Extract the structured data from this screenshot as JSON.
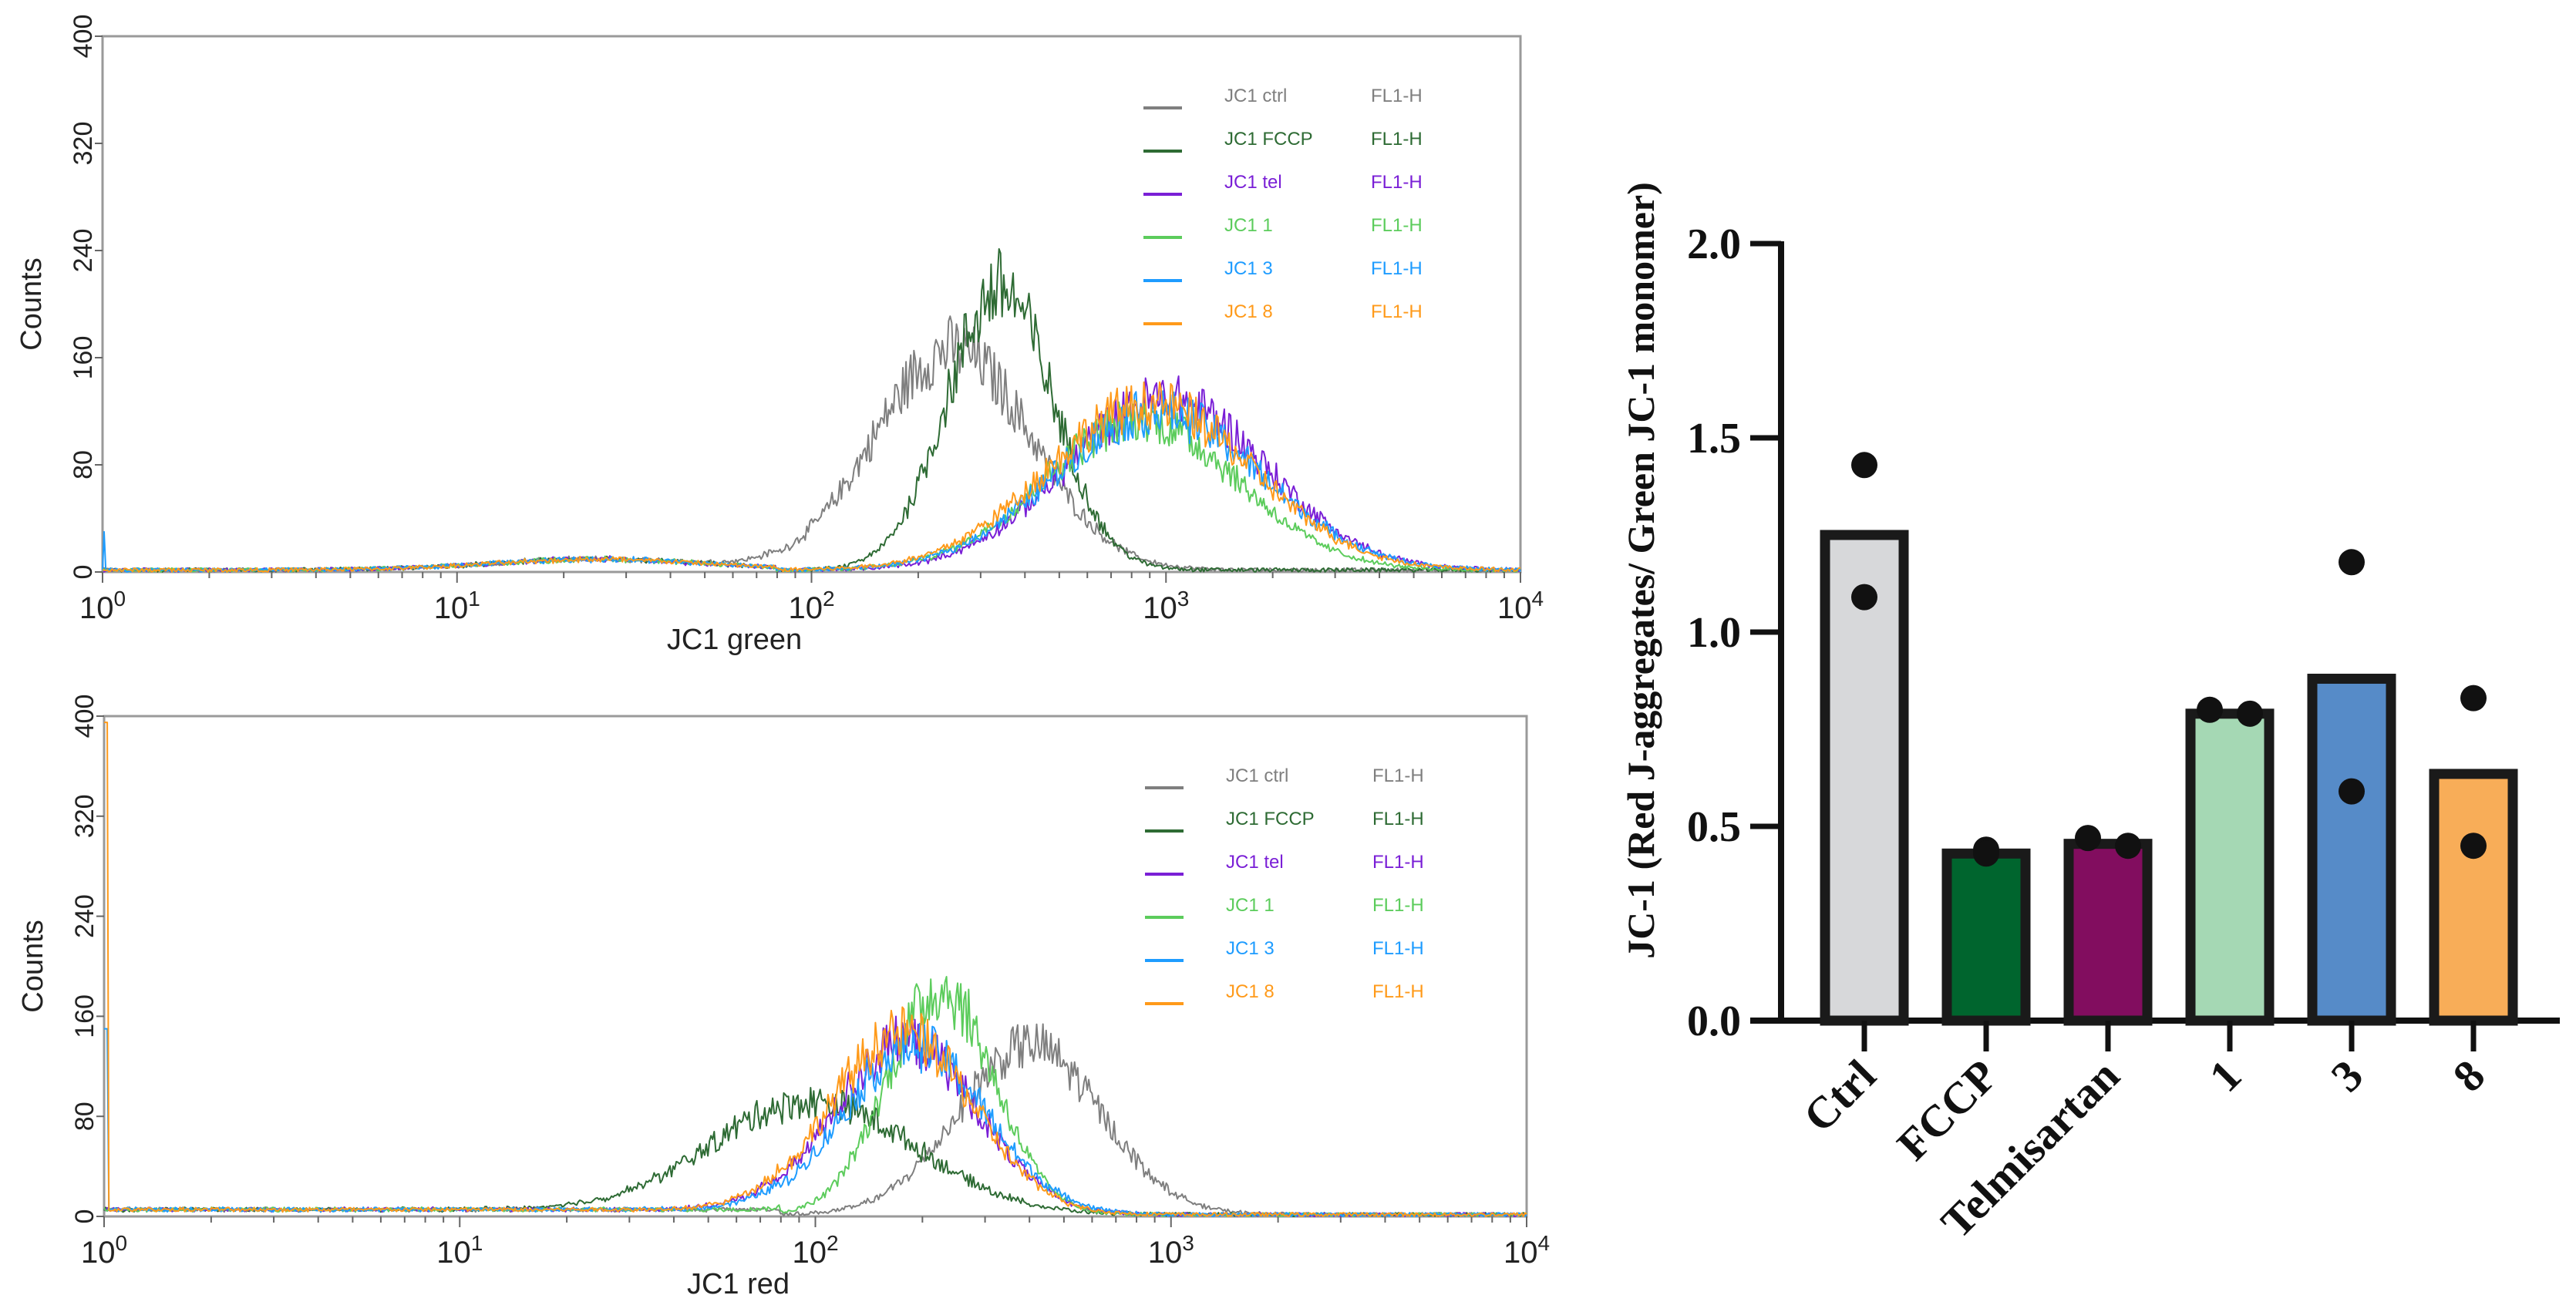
{
  "chart_data": [
    {
      "type": "line",
      "subtype": "flow-cytometry-histogram",
      "xlabel": "JC1 green",
      "ylabel": "Counts",
      "xscale": "log",
      "xlim": [
        1,
        10000
      ],
      "ylim": [
        0,
        400
      ],
      "x_ticks": [
        {
          "base": "10",
          "exp": "0"
        },
        {
          "base": "10",
          "exp": "1"
        },
        {
          "base": "10",
          "exp": "2"
        },
        {
          "base": "10",
          "exp": "3"
        },
        {
          "base": "10",
          "exp": "4"
        }
      ],
      "y_ticks": [
        "0",
        "80",
        "160",
        "240",
        "320",
        "400"
      ],
      "legend_position": "top-right",
      "series": [
        {
          "name": "JC1 ctrl",
          "channel": "FL1-H",
          "color": "#7f7f7f",
          "peak_position": 250,
          "peak_count": 165,
          "log_spread": 0.22
        },
        {
          "name": "JC1 FCCP",
          "channel": "FL1-H",
          "color": "#2e6b34",
          "peak_position": 340,
          "peak_count": 210,
          "log_spread": 0.15
        },
        {
          "name": "JC1 tel",
          "channel": "FL1-H",
          "color": "#7a1fd6",
          "peak_position": 1000,
          "peak_count": 128,
          "log_spread": 0.28
        },
        {
          "name": "JC1 1",
          "channel": "FL1-H",
          "color": "#5ccc5c",
          "peak_position": 850,
          "peak_count": 112,
          "log_spread": 0.27
        },
        {
          "name": "JC1 3",
          "channel": "FL1-H",
          "color": "#1e9cff",
          "peak_position": 950,
          "peak_count": 118,
          "log_spread": 0.29
        },
        {
          "name": "JC1 8",
          "channel": "FL1-H",
          "color": "#ff9a1a",
          "peak_position": 900,
          "peak_count": 124,
          "log_spread": 0.29
        }
      ]
    },
    {
      "type": "line",
      "subtype": "flow-cytometry-histogram",
      "xlabel": "JC1 red",
      "ylabel": "Counts",
      "xscale": "log",
      "xlim": [
        1,
        10000
      ],
      "ylim": [
        0,
        400
      ],
      "x_ticks": [
        {
          "base": "10",
          "exp": "0"
        },
        {
          "base": "10",
          "exp": "1"
        },
        {
          "base": "10",
          "exp": "2"
        },
        {
          "base": "10",
          "exp": "3"
        },
        {
          "base": "10",
          "exp": "4"
        }
      ],
      "y_ticks": [
        "0",
        "80",
        "160",
        "240",
        "320",
        "400"
      ],
      "legend_position": "top-right",
      "series": [
        {
          "name": "JC1 ctrl",
          "channel": "FL1-H",
          "color": "#7f7f7f",
          "peak_position": 400,
          "peak_count": 135,
          "log_spread": 0.2
        },
        {
          "name": "JC1 FCCP",
          "channel": "FL1-H",
          "color": "#2e6b34",
          "peak_position": 100,
          "peak_count": 90,
          "log_spread": 0.28
        },
        {
          "name": "JC1 tel",
          "channel": "FL1-H",
          "color": "#7a1fd6",
          "peak_position": 180,
          "peak_count": 138,
          "log_spread": 0.2
        },
        {
          "name": "JC1 1",
          "channel": "FL1-H",
          "color": "#5ccc5c",
          "peak_position": 225,
          "peak_count": 180,
          "log_spread": 0.15
        },
        {
          "name": "JC1 3",
          "channel": "FL1-H",
          "color": "#1e9cff",
          "peak_position": 190,
          "peak_count": 135,
          "log_spread": 0.2
        },
        {
          "name": "JC1 8",
          "channel": "FL1-H",
          "color": "#ff9a1a",
          "peak_position": 175,
          "peak_count": 145,
          "log_spread": 0.2
        }
      ]
    },
    {
      "type": "bar",
      "ylabel": "JC-1 (Red J-aggregates/ Green JC-1 monomer)",
      "xlabel": "",
      "ylim": [
        0,
        2.0
      ],
      "y_ticks": [
        "0.0",
        "0.5",
        "1.0",
        "1.5",
        "2.0"
      ],
      "categories": [
        "Ctrl",
        "FCCP",
        "Telmisartan",
        "1",
        "3",
        "8"
      ],
      "values": [
        1.25,
        0.43,
        0.455,
        0.79,
        0.88,
        0.635
      ],
      "points": [
        [
          1.43,
          1.09
        ],
        [
          0.44,
          0.43
        ],
        [
          0.47,
          0.45
        ],
        [
          0.8,
          0.79
        ],
        [
          1.18,
          0.59
        ],
        [
          0.83,
          0.45
        ]
      ],
      "colors": [
        "#d7d8da",
        "#00652e",
        "#820d5f",
        "#a5d8b4",
        "#568bc8",
        "#f8ad58"
      ]
    }
  ]
}
